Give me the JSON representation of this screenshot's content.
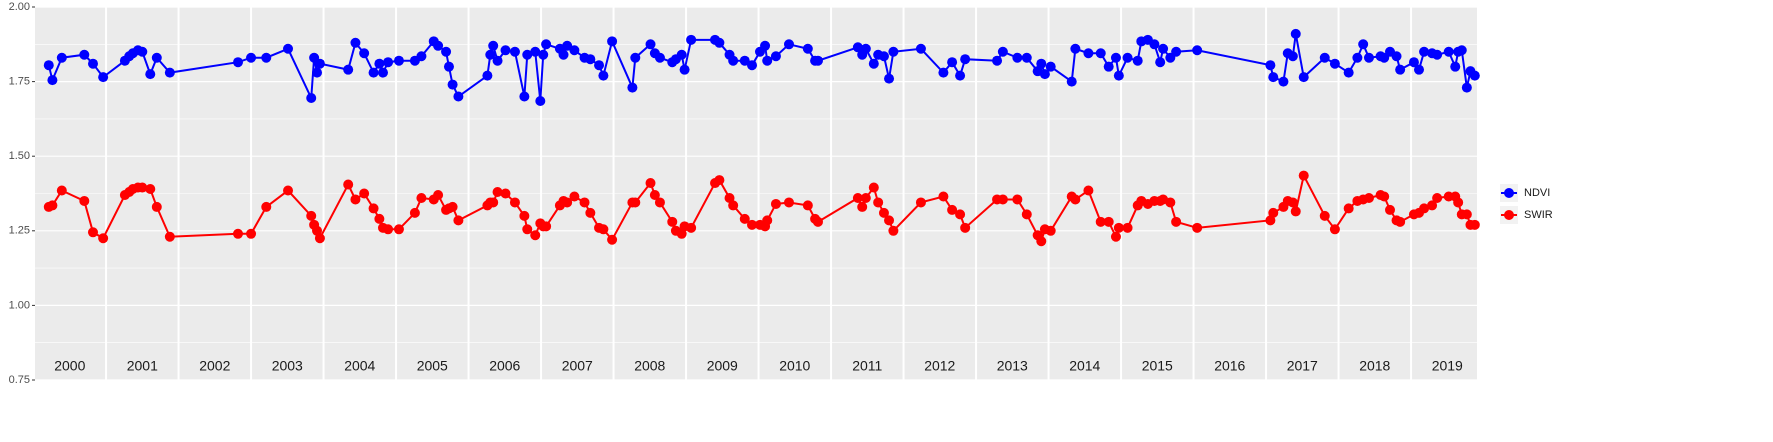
{
  "chart_data": {
    "type": "line",
    "x": [
      2000.21,
      2000.26,
      2000.39,
      2000.7,
      2000.82,
      2000.96,
      2001.26,
      2001.32,
      2001.37,
      2001.44,
      2001.5,
      2001.61,
      2001.7,
      2001.88,
      2002.82,
      2003.0,
      2003.21,
      2003.51,
      2003.83,
      2003.87,
      2003.91,
      2003.95,
      2004.34,
      2004.44,
      2004.56,
      2004.69,
      2004.77,
      2004.82,
      2004.89,
      2005.04,
      2005.26,
      2005.35,
      2005.52,
      2005.58,
      2005.69,
      2005.73,
      2005.78,
      2005.86,
      2006.26,
      2006.3,
      2006.34,
      2006.4,
      2006.51,
      2006.64,
      2006.77,
      2006.81,
      2006.92,
      2006.99,
      2007.03,
      2007.07,
      2007.26,
      2007.31,
      2007.36,
      2007.46,
      2007.6,
      2007.68,
      2007.8,
      2007.86,
      2007.98,
      2008.26,
      2008.3,
      2008.51,
      2008.57,
      2008.64,
      2008.81,
      2008.86,
      2008.94,
      2008.98,
      2009.07,
      2009.4,
      2009.46,
      2009.6,
      2009.65,
      2009.81,
      2009.91,
      2010.02,
      2010.09,
      2010.12,
      2010.24,
      2010.42,
      2010.68,
      2010.78,
      2010.82,
      2011.37,
      2011.43,
      2011.48,
      2011.59,
      2011.65,
      2011.73,
      2011.8,
      2011.86,
      2012.24,
      2012.55,
      2012.67,
      2012.78,
      2012.85,
      2013.29,
      2013.37,
      2013.57,
      2013.7,
      2013.85,
      2013.9,
      2013.95,
      2014.03,
      2014.32,
      2014.37,
      2014.55,
      2014.72,
      2014.83,
      2014.93,
      2014.97,
      2015.09,
      2015.23,
      2015.28,
      2015.37,
      2015.46,
      2015.54,
      2015.58,
      2015.68,
      2015.76,
      2016.05,
      2017.06,
      2017.1,
      2017.24,
      2017.3,
      2017.37,
      2017.41,
      2017.52,
      2017.81,
      2017.95,
      2018.14,
      2018.26,
      2018.34,
      2018.42,
      2018.58,
      2018.63,
      2018.71,
      2018.8,
      2018.85,
      2019.04,
      2019.11,
      2019.18,
      2019.29,
      2019.36,
      2019.52,
      2019.61,
      2019.65,
      2019.7,
      2019.77,
      2019.82,
      2019.88
    ],
    "series": [
      {
        "name": "NDVI",
        "color": "#0000ff",
        "values": [
          1.805,
          1.755,
          1.83,
          1.84,
          1.81,
          1.765,
          1.82,
          1.835,
          1.845,
          1.855,
          1.85,
          1.775,
          1.83,
          1.78,
          1.815,
          1.83,
          1.83,
          1.86,
          1.695,
          1.83,
          1.78,
          1.81,
          1.79,
          1.88,
          1.845,
          1.78,
          1.81,
          1.78,
          1.815,
          1.82,
          1.82,
          1.835,
          1.885,
          1.87,
          1.85,
          1.8,
          1.74,
          1.7,
          1.77,
          1.84,
          1.87,
          1.82,
          1.855,
          1.85,
          1.7,
          1.84,
          1.85,
          1.685,
          1.84,
          1.875,
          1.86,
          1.84,
          1.87,
          1.855,
          1.83,
          1.825,
          1.805,
          1.77,
          1.885,
          1.73,
          1.83,
          1.875,
          1.845,
          1.83,
          1.815,
          1.825,
          1.84,
          1.79,
          1.89,
          1.89,
          1.88,
          1.84,
          1.82,
          1.82,
          1.805,
          1.85,
          1.87,
          1.82,
          1.835,
          1.875,
          1.86,
          1.82,
          1.82,
          1.865,
          1.84,
          1.86,
          1.81,
          1.84,
          1.835,
          1.76,
          1.85,
          1.86,
          1.78,
          1.815,
          1.77,
          1.825,
          1.82,
          1.85,
          1.83,
          1.83,
          1.785,
          1.81,
          1.775,
          1.8,
          1.75,
          1.86,
          1.845,
          1.845,
          1.8,
          1.83,
          1.77,
          1.83,
          1.82,
          1.885,
          1.89,
          1.875,
          1.815,
          1.86,
          1.83,
          1.85,
          1.855,
          1.805,
          1.765,
          1.75,
          1.845,
          1.835,
          1.91,
          1.765,
          1.83,
          1.81,
          1.78,
          1.83,
          1.875,
          1.83,
          1.835,
          1.83,
          1.85,
          1.835,
          1.79,
          1.815,
          1.79,
          1.85,
          1.845,
          1.84,
          1.85,
          1.8,
          1.85,
          1.855,
          1.73,
          1.785,
          1.77
        ]
      },
      {
        "name": "SWIR",
        "color": "#ff0000",
        "values": [
          1.33,
          1.335,
          1.385,
          1.35,
          1.245,
          1.225,
          1.37,
          1.38,
          1.39,
          1.395,
          1.395,
          1.39,
          1.33,
          1.23,
          1.24,
          1.24,
          1.33,
          1.385,
          1.3,
          1.27,
          1.25,
          1.225,
          1.405,
          1.355,
          1.375,
          1.325,
          1.29,
          1.26,
          1.255,
          1.255,
          1.31,
          1.36,
          1.355,
          1.37,
          1.32,
          1.325,
          1.33,
          1.285,
          1.335,
          1.345,
          1.345,
          1.38,
          1.375,
          1.345,
          1.3,
          1.255,
          1.235,
          1.275,
          1.265,
          1.265,
          1.335,
          1.35,
          1.345,
          1.365,
          1.345,
          1.31,
          1.26,
          1.255,
          1.22,
          1.345,
          1.345,
          1.41,
          1.37,
          1.345,
          1.28,
          1.25,
          1.24,
          1.265,
          1.26,
          1.41,
          1.42,
          1.36,
          1.335,
          1.29,
          1.27,
          1.27,
          1.265,
          1.285,
          1.34,
          1.345,
          1.335,
          1.29,
          1.28,
          1.36,
          1.33,
          1.36,
          1.395,
          1.345,
          1.31,
          1.285,
          1.25,
          1.345,
          1.365,
          1.32,
          1.305,
          1.26,
          1.355,
          1.355,
          1.355,
          1.305,
          1.235,
          1.215,
          1.255,
          1.25,
          1.365,
          1.355,
          1.385,
          1.28,
          1.28,
          1.23,
          1.26,
          1.26,
          1.335,
          1.35,
          1.34,
          1.35,
          1.35,
          1.355,
          1.345,
          1.28,
          1.26,
          1.285,
          1.31,
          1.33,
          1.35,
          1.345,
          1.315,
          1.435,
          1.3,
          1.255,
          1.325,
          1.35,
          1.355,
          1.36,
          1.37,
          1.365,
          1.32,
          1.285,
          1.28,
          1.305,
          1.31,
          1.325,
          1.335,
          1.36,
          1.365,
          1.365,
          1.345,
          1.305,
          1.305,
          1.27,
          1.27
        ]
      }
    ],
    "xlim": [
      2000.02,
      2019.91
    ],
    "xgrid": [
      2001,
      2002,
      2003,
      2004,
      2005,
      2006,
      2007,
      2008,
      2009,
      2010,
      2011,
      2012,
      2013,
      2014,
      2015,
      2016,
      2017,
      2018,
      2019
    ],
    "ylim": [
      0.75,
      2.0
    ],
    "yticks": [
      {
        "value": 0.75,
        "label": "0.75"
      },
      {
        "value": 1.0,
        "label": "1.00"
      },
      {
        "value": 1.25,
        "label": "1.25"
      },
      {
        "value": 1.5,
        "label": "1.50"
      },
      {
        "value": 1.75,
        "label": "1.75"
      },
      {
        "value": 2.0,
        "label": "2.00"
      }
    ],
    "yminor": [
      0.875,
      1.125,
      1.375,
      1.625,
      1.875
    ],
    "annotations": [
      {
        "x": 2000.5,
        "text": "2000"
      },
      {
        "x": 2001.5,
        "text": "2001"
      },
      {
        "x": 2002.5,
        "text": "2002"
      },
      {
        "x": 2003.5,
        "text": "2003"
      },
      {
        "x": 2004.5,
        "text": "2004"
      },
      {
        "x": 2005.5,
        "text": "2005"
      },
      {
        "x": 2006.5,
        "text": "2006"
      },
      {
        "x": 2007.5,
        "text": "2007"
      },
      {
        "x": 2008.5,
        "text": "2008"
      },
      {
        "x": 2009.5,
        "text": "2009"
      },
      {
        "x": 2010.5,
        "text": "2010"
      },
      {
        "x": 2011.5,
        "text": "2011"
      },
      {
        "x": 2012.5,
        "text": "2012"
      },
      {
        "x": 2013.5,
        "text": "2013"
      },
      {
        "x": 2014.5,
        "text": "2014"
      },
      {
        "x": 2015.5,
        "text": "2015"
      },
      {
        "x": 2016.5,
        "text": "2016"
      },
      {
        "x": 2017.5,
        "text": "2017"
      },
      {
        "x": 2018.5,
        "text": "2018"
      },
      {
        "x": 2019.5,
        "text": "2019"
      }
    ],
    "grid": true,
    "legend": "right"
  }
}
